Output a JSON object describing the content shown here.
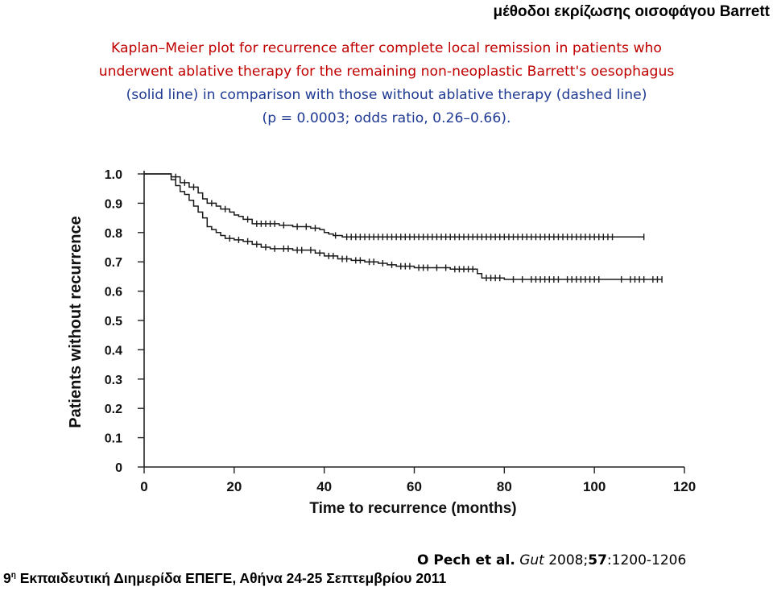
{
  "header": {
    "topic": "μέθοδοι εκρίζωσης οισοφάγου Barrett"
  },
  "caption": {
    "lines": [
      "Kaplan–Meier plot for recurrence after complete local remission in patients who",
      "underwent ablative therapy for the remaining non-neoplastic Barrett's oesophagus",
      "(solid line) in comparison with those without ablative therapy (dashed line)",
      "(p = 0.0003; odds ratio, 0.26–0.66)."
    ]
  },
  "citation": {
    "authors": "O Pech et al.",
    "journal": "Gut",
    "year": "2008;",
    "volume": "57",
    "pages": ":1200-1206"
  },
  "footer": {
    "ordinal": "9",
    "ordinal_suffix": "η",
    "text": "Εκπαιδευτική Διημερίδα ΕΠΕΓΕ, Αθήνα 24-25 Σεπτεμβρίου 2011"
  },
  "chart_data": {
    "type": "line",
    "xlabel": "Time to recurrence (months)",
    "ylabel": "Patients without recurrence",
    "xlim": [
      0,
      120
    ],
    "ylim": [
      0,
      1.0
    ],
    "xticks": [
      0,
      20,
      40,
      60,
      80,
      100,
      120
    ],
    "yticks": [
      0,
      0.1,
      0.2,
      0.3,
      0.4,
      0.5,
      0.6,
      0.7,
      0.8,
      0.9,
      1.0
    ],
    "ytick_labels": [
      "0",
      "0.1",
      "0.2",
      "0.3",
      "0.4",
      "0.5",
      "0.6",
      "0.7",
      "0.8",
      "0.9",
      "1.0"
    ],
    "grid": false,
    "series": [
      {
        "line": "solid",
        "steps": [
          [
            0,
            1.0
          ],
          [
            6,
            0.99
          ],
          [
            8,
            0.97
          ],
          [
            10,
            0.955
          ],
          [
            12,
            0.935
          ],
          [
            13,
            0.915
          ],
          [
            14,
            0.9
          ],
          [
            16,
            0.89
          ],
          [
            17,
            0.88
          ],
          [
            19,
            0.87
          ],
          [
            20,
            0.86
          ],
          [
            21,
            0.855
          ],
          [
            22,
            0.845
          ],
          [
            24,
            0.83
          ],
          [
            30,
            0.825
          ],
          [
            33,
            0.82
          ],
          [
            37,
            0.815
          ],
          [
            39,
            0.81
          ],
          [
            40,
            0.8
          ],
          [
            41,
            0.795
          ],
          [
            42,
            0.79
          ],
          [
            44,
            0.785
          ],
          [
            111,
            0.785
          ]
        ],
        "censored": [
          7,
          9,
          11,
          15,
          18,
          23,
          25,
          26,
          27,
          28,
          29,
          31,
          34,
          36,
          38,
          42.5,
          45,
          46,
          47,
          48,
          49,
          50,
          51,
          52,
          53,
          54,
          55,
          56,
          57,
          58,
          59,
          60,
          61,
          62,
          63,
          64,
          65,
          66,
          67,
          68,
          69,
          70,
          71,
          72,
          73,
          74,
          75,
          76,
          77,
          78,
          79,
          80,
          81,
          82,
          83,
          84,
          85,
          86,
          87,
          88,
          89,
          90,
          91,
          92,
          93,
          94,
          95,
          96,
          97,
          98,
          99,
          100,
          101,
          102,
          103,
          104,
          111
        ]
      },
      {
        "line": "dashed",
        "steps": [
          [
            0,
            1.0
          ],
          [
            6,
            0.98
          ],
          [
            7,
            0.96
          ],
          [
            8,
            0.94
          ],
          [
            9,
            0.93
          ],
          [
            10,
            0.91
          ],
          [
            11,
            0.89
          ],
          [
            12,
            0.87
          ],
          [
            13,
            0.85
          ],
          [
            14,
            0.82
          ],
          [
            15,
            0.81
          ],
          [
            16,
            0.8
          ],
          [
            17,
            0.79
          ],
          [
            18,
            0.78
          ],
          [
            20,
            0.775
          ],
          [
            22,
            0.77
          ],
          [
            24,
            0.76
          ],
          [
            26,
            0.75
          ],
          [
            28,
            0.745
          ],
          [
            33,
            0.74
          ],
          [
            38,
            0.73
          ],
          [
            40,
            0.72
          ],
          [
            43,
            0.71
          ],
          [
            46,
            0.705
          ],
          [
            49,
            0.7
          ],
          [
            52,
            0.695
          ],
          [
            54,
            0.69
          ],
          [
            56,
            0.685
          ],
          [
            60,
            0.68
          ],
          [
            68,
            0.675
          ],
          [
            74,
            0.66
          ],
          [
            75,
            0.645
          ],
          [
            80,
            0.64
          ],
          [
            115,
            0.64
          ]
        ],
        "censored": [
          19,
          21,
          23,
          25,
          27,
          29,
          31,
          32,
          34,
          35,
          37,
          39,
          41,
          42,
          44,
          45,
          47,
          48,
          50,
          51,
          53,
          55,
          57,
          58,
          59,
          61,
          62,
          63,
          65,
          67,
          69,
          70,
          71,
          72,
          73,
          76,
          77,
          78,
          79,
          82,
          84,
          86,
          87,
          88,
          89,
          90,
          91,
          92,
          94,
          95,
          96,
          97,
          98,
          99,
          100,
          101,
          106,
          108,
          109,
          110,
          111,
          113,
          114,
          115
        ]
      }
    ]
  }
}
